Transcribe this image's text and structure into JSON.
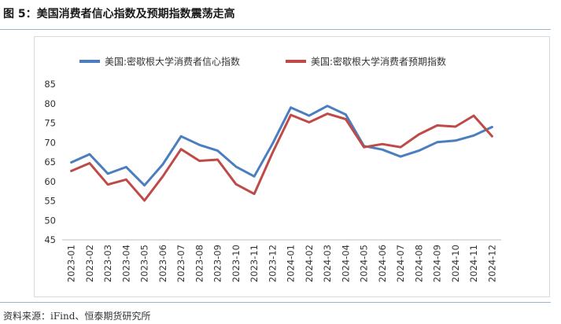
{
  "figure_title": "图 5：美国消费者信心指数及预期指数震荡走高",
  "source": "资料来源：iFind、恒泰期货研究所",
  "colors": {
    "confidence": "#4a7ebf",
    "expectation": "#be4b48",
    "frame": "#d9d9d9",
    "rule": "#9fb4c8"
  },
  "chart_data": {
    "type": "line",
    "title": "",
    "xlabel": "",
    "ylabel": "",
    "ylim": [
      45,
      85
    ],
    "yticks": [
      45,
      50,
      55,
      60,
      65,
      70,
      75,
      80,
      85
    ],
    "grid": false,
    "legend_position": "top",
    "categories": [
      "2023-01",
      "2023-02",
      "2023-03",
      "2023-04",
      "2023-05",
      "2023-06",
      "2023-07",
      "2023-08",
      "2023-09",
      "2023-10",
      "2023-11",
      "2023-12",
      "2024-01",
      "2024-02",
      "2024-03",
      "2024-04",
      "2024-05",
      "2024-06",
      "2024-07",
      "2024-08",
      "2024-09",
      "2024-10",
      "2024-11",
      "2024-12"
    ],
    "series": [
      {
        "name": "美国:密歇根大学消费者信心指数",
        "values": [
          64.9,
          67.0,
          62.0,
          63.7,
          59.0,
          64.4,
          71.6,
          69.4,
          67.9,
          63.8,
          61.3,
          69.7,
          79.0,
          76.9,
          79.4,
          77.2,
          69.1,
          68.2,
          66.4,
          67.9,
          70.1,
          70.5,
          71.8,
          74.0
        ]
      },
      {
        "name": "美国:密歇根大学消费者预期指数",
        "values": [
          62.7,
          64.7,
          59.2,
          60.5,
          55.1,
          61.3,
          68.3,
          65.3,
          65.6,
          59.3,
          56.8,
          67.4,
          77.1,
          75.2,
          77.4,
          76.0,
          68.8,
          69.6,
          68.8,
          72.1,
          74.4,
          74.1,
          76.9,
          71.6
        ]
      }
    ]
  }
}
